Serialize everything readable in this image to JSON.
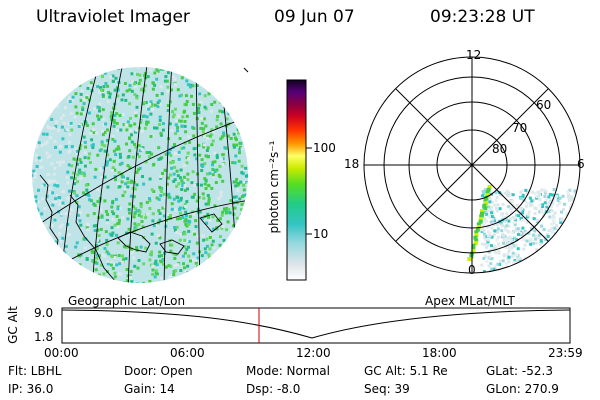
{
  "header": {
    "title": "Ultraviolet Imager",
    "date": "09 Jun 07",
    "time": "09:23:28 UT"
  },
  "colorbar": {
    "unit_label": "photon cm⁻²s⁻¹",
    "ticks": [
      "100",
      "10"
    ]
  },
  "polar_plot": {
    "mlt_labels": {
      "top": "12",
      "left": "18",
      "right": "6",
      "bottom": "0"
    },
    "lat_labels": [
      "60",
      "70",
      "80"
    ]
  },
  "timeline": {
    "left_label": "Geographic Lat/Lon",
    "right_label": "Apex MLat/MLT",
    "axis_title": "GC Alt",
    "y_ticks": [
      "9.0",
      "1.8"
    ],
    "x_ticks": [
      "00:00",
      "06:00",
      "12:00",
      "18:00",
      "23:59"
    ],
    "current_marker_time": "09:23"
  },
  "footer": {
    "flt": "Flt: LBHL",
    "ip": "IP: 36.0",
    "door": "Door: Open",
    "gain": "Gain: 14",
    "mode": "Mode: Normal",
    "dsp": "Dsp:  -8.0",
    "gc_alt": "GC Alt: 5.1 Re",
    "seq": "Seq: 39",
    "glat": "GLat: -52.3",
    "glon": "GLon: 270.9"
  },
  "colors": {
    "grid": "#000000",
    "marker": "#cc0000",
    "emission_low": "#dde8ec",
    "emission_mid": "#33c4c4",
    "emission_high": "#44cc44"
  }
}
